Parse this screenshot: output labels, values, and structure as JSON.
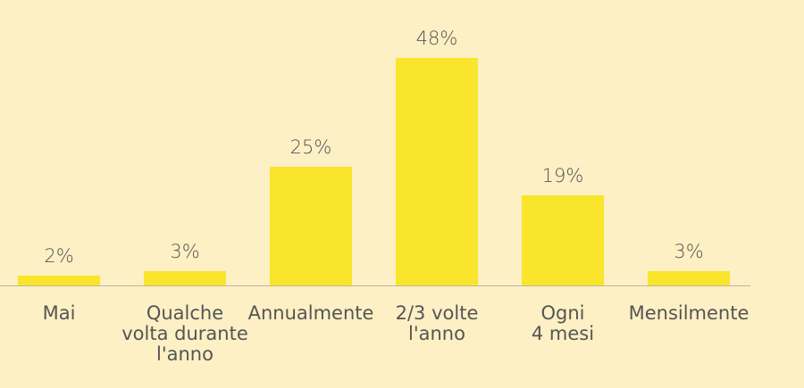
{
  "chart_data": {
    "type": "bar",
    "categories": [
      "Mai",
      "Qualche\nvolta durante\nl'anno",
      "Annualmente",
      "2/3 volte\nl'anno",
      "Ogni\n4 mesi",
      "Mensilmente"
    ],
    "values": [
      2,
      3,
      25,
      48,
      19,
      3
    ],
    "value_labels": [
      "2%",
      "3%",
      "25%",
      "48%",
      "19%",
      "3%"
    ],
    "color": "#f9e52b"
  }
}
